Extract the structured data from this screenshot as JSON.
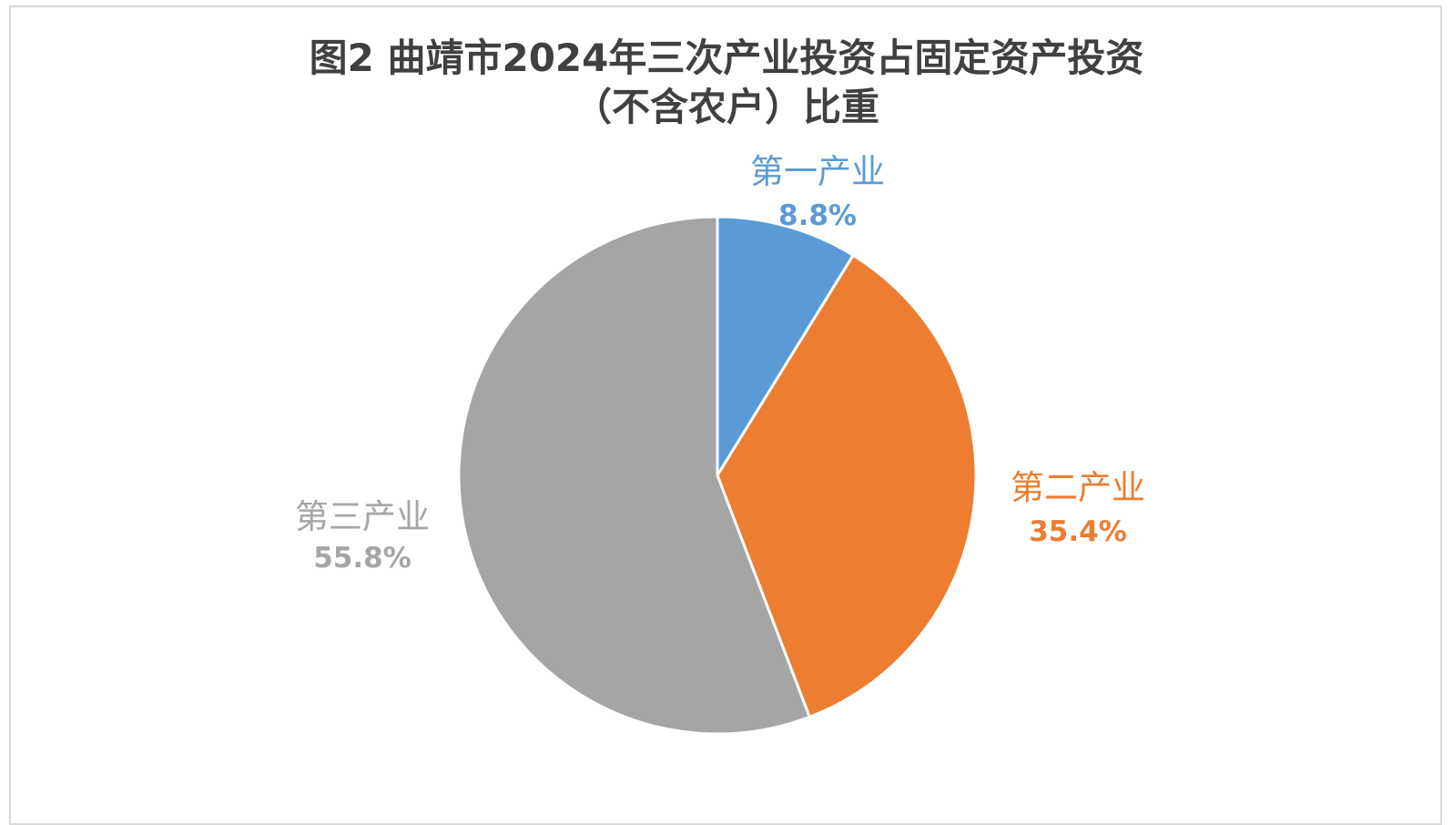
{
  "chart_data": {
    "type": "pie",
    "title_line1": "图2  曲靖市2024年三次产业投资占固定资产投资",
    "title_line2": "（不含农户）比重",
    "slices": [
      {
        "name": "第一产业",
        "value": 8.8,
        "label": "8.8%",
        "color": "#5b9bd5"
      },
      {
        "name": "第二产业",
        "value": 35.4,
        "label": "35.4%",
        "color": "#ed7d31"
      },
      {
        "name": "第三产业",
        "value": 55.8,
        "label": "55.8%",
        "color": "#a5a5a5"
      }
    ],
    "start": "12 o'clock",
    "direction": "clockwise",
    "legend": "none"
  }
}
